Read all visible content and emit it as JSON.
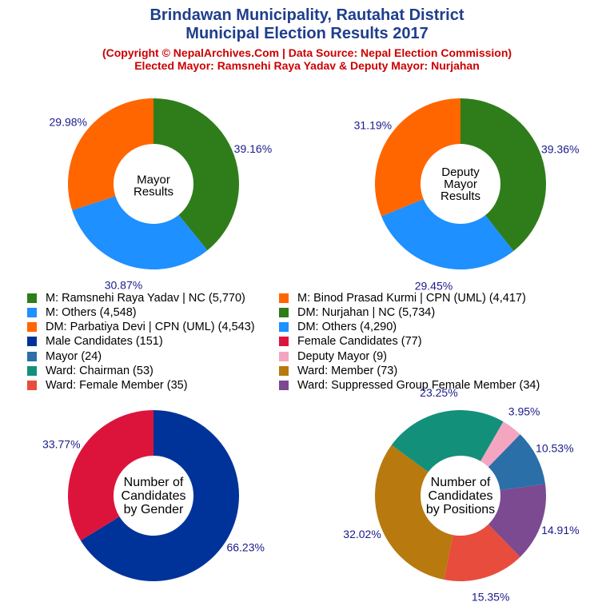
{
  "header": {
    "title_line1": "Brindawan Municipality, Rautahat District",
    "title_line2": "Municipal Election Results 2017",
    "subtitle_line1": "(Copyright © NepalArchives.Com | Data Source: Nepal Election Commission)",
    "subtitle_line2": "Elected Mayor: Ramsnehi Raya Yadav & Deputy Mayor: Nurjahan"
  },
  "legend": [
    {
      "label": "M: Ramsnehi Raya Yadav | NC (5,770)",
      "color": "#2e7d1a"
    },
    {
      "label": "M: Binod Prasad Kurmi | CPN (UML) (4,417)",
      "color": "#ff6600"
    },
    {
      "label": "M: Others (4,548)",
      "color": "#1e90ff"
    },
    {
      "label": "DM: Nurjahan | NC (5,734)",
      "color": "#2e7d1a"
    },
    {
      "label": "DM: Parbatiya Devi | CPN (UML) (4,543)",
      "color": "#ff6600"
    },
    {
      "label": "DM: Others (4,290)",
      "color": "#1e90ff"
    },
    {
      "label": "Male Candidates (151)",
      "color": "#003399"
    },
    {
      "label": "Female Candidates (77)",
      "color": "#dc143c"
    },
    {
      "label": "Mayor (24)",
      "color": "#2a6fa8"
    },
    {
      "label": "Deputy Mayor (9)",
      "color": "#f4a6c0"
    },
    {
      "label": "Ward: Chairman (53)",
      "color": "#13907a"
    },
    {
      "label": "Ward: Member (73)",
      "color": "#b8790e"
    },
    {
      "label": "Ward: Female Member (35)",
      "color": "#e84c3d"
    },
    {
      "label": "Ward: Suppressed Group Female Member (34)",
      "color": "#7b4a91"
    }
  ],
  "chart_data": [
    {
      "type": "pie",
      "center_label": [
        "Mayor",
        "Results"
      ],
      "labels": [
        "M: Ramsnehi Raya Yadav | NC",
        "M: Others",
        "M: Binod Prasad Kurmi | CPN (UML)"
      ],
      "values": [
        5770,
        4548,
        4417
      ],
      "percent_labels": [
        "39.16%",
        "30.87%",
        "29.98%"
      ],
      "colors": [
        "#2e7d1a",
        "#1e90ff",
        "#ff6600"
      ]
    },
    {
      "type": "pie",
      "center_label": [
        "Deputy",
        "Mayor",
        "Results"
      ],
      "labels": [
        "DM: Nurjahan | NC",
        "DM: Others",
        "DM: Parbatiya Devi | CPN (UML)"
      ],
      "values": [
        5734,
        4290,
        4543
      ],
      "percent_labels": [
        "39.36%",
        "29.45%",
        "31.19%"
      ],
      "colors": [
        "#2e7d1a",
        "#1e90ff",
        "#ff6600"
      ]
    },
    {
      "type": "pie",
      "center_label": [
        "Number of",
        "Candidates",
        "by Gender"
      ],
      "labels": [
        "Male Candidates",
        "Female Candidates"
      ],
      "values": [
        151,
        77
      ],
      "percent_labels": [
        "66.23%",
        "33.77%"
      ],
      "colors": [
        "#003399",
        "#dc143c"
      ]
    },
    {
      "type": "pie",
      "center_label": [
        "Number of",
        "Candidates",
        "by Positions"
      ],
      "labels": [
        "Deputy Mayor",
        "Mayor",
        "Ward: Suppressed Group Female Member",
        "Ward: Female Member",
        "Ward: Member",
        "Ward: Chairman"
      ],
      "values": [
        9,
        24,
        34,
        35,
        73,
        53
      ],
      "percent_labels": [
        "3.95%",
        "10.53%",
        "14.91%",
        "15.35%",
        "32.02%",
        "23.25%"
      ],
      "colors": [
        "#f4a6c0",
        "#2a6fa8",
        "#7b4a91",
        "#e84c3d",
        "#b8790e",
        "#13907a"
      ]
    }
  ]
}
